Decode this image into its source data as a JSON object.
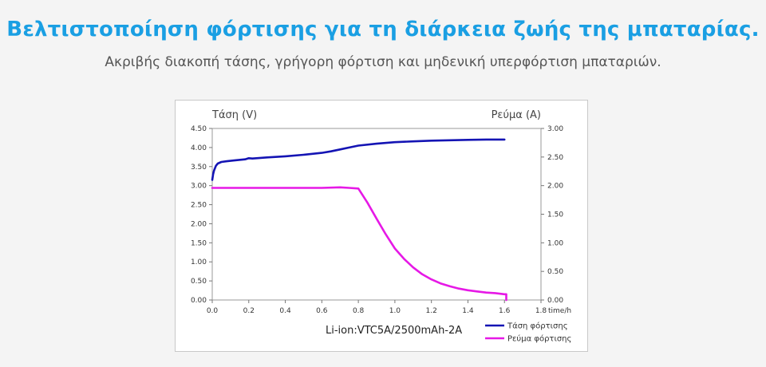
{
  "header": {
    "title": "Βελτιστοποίηση φόρτισης για τη διάρκεια ζωής της μπαταρίας.",
    "subtitle": "Ακριβής διακοπή τάσης, γρήγορη φόρτιση και μηδενική υπερφόρτιση μπαταριών."
  },
  "chart_data": {
    "type": "line",
    "title": "",
    "xlabel": "time/h",
    "ylabel_left": "Τάση (V)",
    "ylabel_right": "Ρεύμα (A)",
    "annotation": "Li-ion:VTC5A/2500mAh-2A",
    "xlim": [
      0,
      1.8
    ],
    "ylim_left": [
      0,
      4.5
    ],
    "ylim_right": [
      0,
      3.0
    ],
    "x_ticks": [
      "0.0",
      "0.2",
      "0.4",
      "0.6",
      "0.8",
      "1.0",
      "1.2",
      "1.4",
      "1.6",
      "1.8"
    ],
    "y_left_ticks": [
      "0.00",
      "0.50",
      "1.00",
      "1.50",
      "2.00",
      "2.50",
      "3.00",
      "3.50",
      "4.00",
      "4.50"
    ],
    "y_right_ticks": [
      "0.00",
      "0.50",
      "1.00",
      "1.50",
      "2.00",
      "2.50",
      "3.00"
    ],
    "grid": false,
    "legend_position": "bottom-right",
    "series": [
      {
        "name": "Τάση φόρτισης",
        "axis": "left",
        "color": "#1414b4",
        "x": [
          0,
          0.005,
          0.01,
          0.02,
          0.03,
          0.05,
          0.08,
          0.12,
          0.18,
          0.2,
          0.22,
          0.3,
          0.4,
          0.5,
          0.6,
          0.65,
          0.7,
          0.75,
          0.8,
          0.9,
          1.0,
          1.1,
          1.2,
          1.3,
          1.4,
          1.5,
          1.6
        ],
        "y": [
          3.15,
          3.3,
          3.4,
          3.52,
          3.58,
          3.62,
          3.64,
          3.66,
          3.69,
          3.72,
          3.71,
          3.74,
          3.77,
          3.81,
          3.86,
          3.9,
          3.95,
          4.0,
          4.05,
          4.1,
          4.14,
          4.16,
          4.18,
          4.19,
          4.2,
          4.21,
          4.21
        ]
      },
      {
        "name": "Ρεύμα φόρτισης",
        "axis": "right",
        "color": "#e619e6",
        "x": [
          0,
          0.1,
          0.2,
          0.3,
          0.4,
          0.5,
          0.6,
          0.7,
          0.75,
          0.8,
          0.82,
          0.85,
          0.9,
          0.95,
          1.0,
          1.05,
          1.1,
          1.15,
          1.2,
          1.25,
          1.3,
          1.35,
          1.4,
          1.45,
          1.5,
          1.55,
          1.6,
          1.61,
          1.61
        ],
        "y": [
          1.96,
          1.96,
          1.96,
          1.96,
          1.96,
          1.96,
          1.96,
          1.97,
          1.96,
          1.95,
          1.85,
          1.7,
          1.42,
          1.15,
          0.9,
          0.72,
          0.57,
          0.45,
          0.36,
          0.29,
          0.24,
          0.2,
          0.17,
          0.15,
          0.13,
          0.12,
          0.1,
          0.1,
          0.0
        ]
      }
    ]
  }
}
